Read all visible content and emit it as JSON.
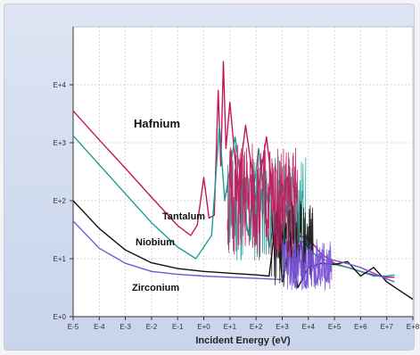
{
  "chart_data": {
    "type": "line",
    "title": "",
    "xlabel": "Incident Energy (eV)",
    "ylabel": "",
    "x_scale": "log",
    "y_scale": "log",
    "xlim_exp": [
      -5,
      8
    ],
    "ylim_exp": [
      0,
      5
    ],
    "x_ticks": [
      "E-5",
      "E-4",
      "E-3",
      "E-2",
      "E-1",
      "E+0",
      "E+1",
      "E+2",
      "E+3",
      "E+4",
      "E+5",
      "E+6",
      "E+7",
      "E+8"
    ],
    "y_ticks": [
      "E+0",
      "E+1",
      "E+2",
      "E+3",
      "E+4"
    ],
    "grid": true,
    "series": [
      {
        "name": "Hafnium",
        "color": "#c2185b",
        "points": [
          [
            -5,
            3.55
          ],
          [
            -4,
            3.05
          ],
          [
            -3,
            2.56
          ],
          [
            -2,
            2.06
          ],
          [
            -1,
            1.57
          ],
          [
            -0.5,
            1.4
          ],
          [
            -0.25,
            1.58
          ],
          [
            0,
            2.4
          ],
          [
            0.2,
            1.7
          ],
          [
            0.4,
            1.75
          ],
          [
            0.55,
            3.9
          ],
          [
            0.65,
            2.6
          ],
          [
            0.75,
            4.4
          ],
          [
            0.85,
            2.9
          ],
          [
            1.0,
            3.7
          ],
          [
            1.3,
            2.2
          ],
          [
            1.6,
            3.3
          ],
          [
            2.0,
            2.0
          ],
          [
            2.4,
            3.1
          ],
          [
            2.8,
            1.5
          ],
          [
            3.2,
            2.4
          ],
          [
            3.6,
            1.4
          ],
          [
            4.0,
            1.35
          ],
          [
            4.5,
            1.08
          ],
          [
            5.0,
            0.92
          ],
          [
            5.5,
            0.85
          ],
          [
            6.0,
            0.78
          ],
          [
            6.5,
            0.72
          ],
          [
            7.0,
            0.68
          ],
          [
            7.3,
            0.68
          ]
        ]
      },
      {
        "name": "Tantalum",
        "color": "#1a9e94",
        "points": [
          [
            -5,
            3.12
          ],
          [
            -4,
            2.62
          ],
          [
            -3,
            2.12
          ],
          [
            -2,
            1.62
          ],
          [
            -1,
            1.2
          ],
          [
            -0.3,
            1.0
          ],
          [
            0.3,
            1.4
          ],
          [
            0.6,
            3.3
          ],
          [
            0.8,
            2.0
          ],
          [
            1.2,
            3.1
          ],
          [
            1.7,
            1.4
          ],
          [
            2.1,
            2.9
          ],
          [
            2.5,
            1.2
          ],
          [
            3.0,
            2.3
          ],
          [
            3.4,
            1.1
          ],
          [
            3.8,
            1.3
          ],
          [
            4.3,
            1.05
          ],
          [
            5.0,
            0.9
          ],
          [
            5.5,
            0.85
          ],
          [
            6.0,
            0.78
          ],
          [
            6.5,
            0.7
          ],
          [
            7.0,
            0.7
          ],
          [
            7.3,
            0.72
          ]
        ]
      },
      {
        "name": "Niobium",
        "color": "#111111",
        "points": [
          [
            -5,
            2.0
          ],
          [
            -4,
            1.52
          ],
          [
            -3,
            1.15
          ],
          [
            -2,
            0.93
          ],
          [
            -1,
            0.83
          ],
          [
            0,
            0.78
          ],
          [
            1,
            0.75
          ],
          [
            2,
            0.72
          ],
          [
            2.5,
            0.7
          ],
          [
            2.8,
            1.8
          ],
          [
            3.0,
            0.6
          ],
          [
            3.3,
            1.3
          ],
          [
            3.6,
            0.5
          ],
          [
            4.0,
            0.85
          ],
          [
            4.5,
            0.92
          ],
          [
            5.0,
            0.9
          ],
          [
            5.5,
            0.95
          ],
          [
            6.0,
            0.7
          ],
          [
            6.5,
            0.85
          ],
          [
            7.0,
            0.6
          ],
          [
            7.5,
            0.45
          ],
          [
            8.0,
            0.3
          ]
        ]
      },
      {
        "name": "Zirconium",
        "color": "#7a52d6",
        "points": [
          [
            -5,
            1.65
          ],
          [
            -4,
            1.18
          ],
          [
            -3,
            0.92
          ],
          [
            -2,
            0.78
          ],
          [
            -1,
            0.73
          ],
          [
            0,
            0.7
          ],
          [
            1,
            0.68
          ],
          [
            2,
            0.66
          ],
          [
            3,
            0.64
          ],
          [
            3.3,
            1.1
          ],
          [
            3.5,
            0.5
          ],
          [
            3.7,
            1.3
          ],
          [
            3.9,
            0.5
          ],
          [
            4.1,
            1.25
          ],
          [
            4.3,
            0.55
          ],
          [
            4.5,
            1.1
          ],
          [
            4.7,
            0.6
          ],
          [
            4.9,
            0.98
          ],
          [
            5.2,
            0.95
          ],
          [
            5.6,
            0.9
          ],
          [
            6.0,
            0.85
          ],
          [
            6.5,
            0.75
          ],
          [
            7.0,
            0.65
          ],
          [
            7.3,
            0.6
          ]
        ]
      }
    ],
    "annotations": [
      "Hafnium",
      "Tantalum",
      "Niobium",
      "Zirconium"
    ]
  }
}
